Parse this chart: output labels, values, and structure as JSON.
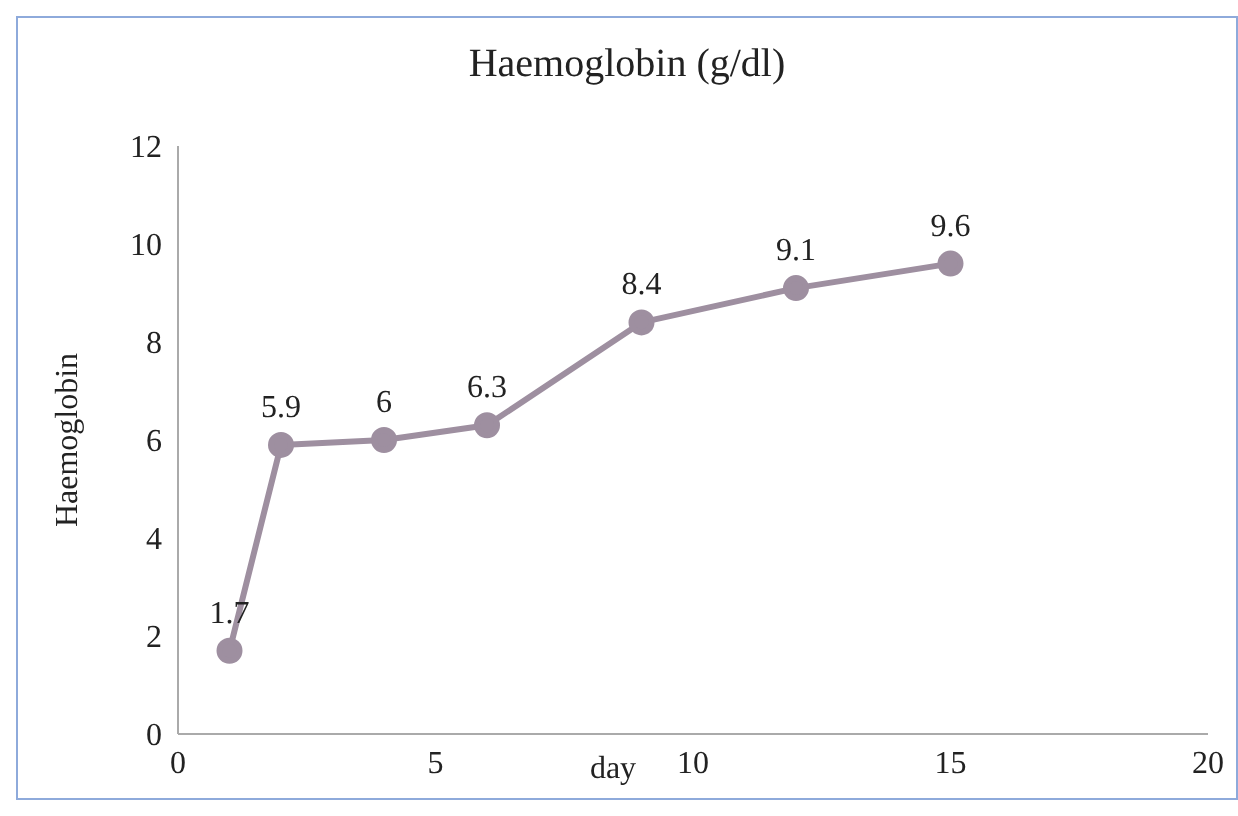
{
  "chart_data": {
    "type": "line",
    "title": "Haemoglobin (g/dl)",
    "xlabel": "day",
    "ylabel": "Haemoglobin",
    "x": [
      1,
      2,
      4,
      6,
      9,
      12,
      15
    ],
    "series": [
      {
        "color": "#9e8fa0",
        "values": [
          1.7,
          5.9,
          6,
          6.3,
          8.4,
          9.1,
          9.6
        ]
      }
    ],
    "xlim": [
      0,
      20
    ],
    "xticks": [
      0,
      5,
      10,
      15,
      20
    ],
    "ylim": [
      0,
      12
    ],
    "yticks": [
      0,
      2,
      4,
      6,
      8,
      10,
      12
    ],
    "marker": "circle",
    "line_style": "solid",
    "grid": false,
    "legend": false,
    "data_labels": true
  }
}
